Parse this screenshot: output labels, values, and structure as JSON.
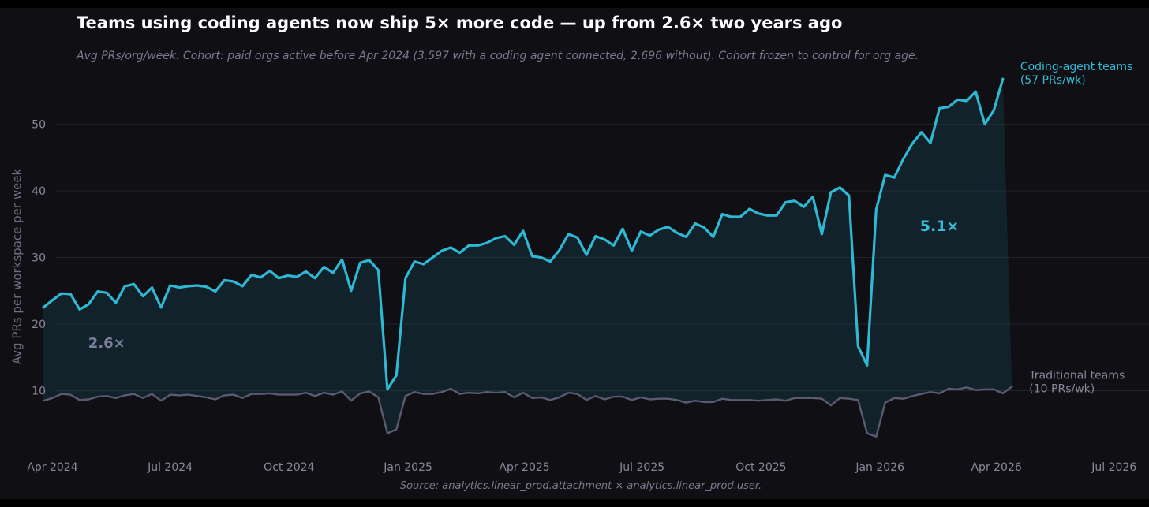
{
  "title": "Teams using coding agents now ship 5× more code — up from 2.6× two years ago",
  "subtitle": "Avg PRs/org/week. Cohort: paid orgs active before Apr 2024 (3,597 with a coding agent connected, 2,696 without). Cohort frozen to control for org age.",
  "source": "Source: analytics.linear_prod.attachment × analytics.linear_prod.user.",
  "colors": {
    "agent": "#2fb8d3",
    "traditional": "#5a5a72",
    "background": "#0f0f14",
    "grid": "#23232c"
  },
  "chart_data": {
    "type": "line",
    "ylabel": "Avg PRs per workspace per week",
    "ylim": [
      0,
      58
    ],
    "xlim": [
      "2024-03-25",
      "2026-07-28"
    ],
    "yticks": [
      10,
      20,
      30,
      40,
      50
    ],
    "ytick_labels": [
      "10",
      "20",
      "30",
      "40",
      "50"
    ],
    "xticks": [
      "2024-04-01",
      "2024-07-01",
      "2024-10-01",
      "2025-01-01",
      "2025-04-01",
      "2025-07-01",
      "2025-10-01",
      "2026-01-01",
      "2026-04-01",
      "2026-07-01"
    ],
    "xtick_labels": [
      "Apr 2024",
      "Jul 2024",
      "Oct 2024",
      "Jan 2025",
      "Apr 2025",
      "Jul 2025",
      "Oct 2025",
      "Jan 2026",
      "Apr 2026",
      "Jul 2026"
    ],
    "grid": true,
    "x_start": "2024-03-25",
    "x_step_days": 7,
    "series": [
      {
        "name": "Coding-agent teams",
        "end_label": [
          "Coding-agent teams",
          "(57 PRs/wk)"
        ],
        "values": [
          22.5,
          23.6,
          24.6,
          24.5,
          22.2,
          23.0,
          24.9,
          24.7,
          23.2,
          25.7,
          26.0,
          24.2,
          25.5,
          22.5,
          25.8,
          25.5,
          25.7,
          25.8,
          25.6,
          24.9,
          26.6,
          26.4,
          25.7,
          27.4,
          27.0,
          28.0,
          26.9,
          27.3,
          27.1,
          27.9,
          26.9,
          28.6,
          27.7,
          29.7,
          25.0,
          29.2,
          29.6,
          28.1,
          10.2,
          12.3,
          26.9,
          29.4,
          29.0,
          30.0,
          31.0,
          31.5,
          30.7,
          31.8,
          31.8,
          32.2,
          32.9,
          33.2,
          31.9,
          34.0,
          30.2,
          30.0,
          29.4,
          31.1,
          33.5,
          33.0,
          30.4,
          33.2,
          32.7,
          31.8,
          34.3,
          31.0,
          33.9,
          33.3,
          34.2,
          34.6,
          33.7,
          33.1,
          35.1,
          34.5,
          33.1,
          36.5,
          36.1,
          36.1,
          37.3,
          36.6,
          36.3,
          36.3,
          38.3,
          38.5,
          37.6,
          39.1,
          33.5,
          39.8,
          40.5,
          39.3,
          16.7,
          13.8,
          37.2,
          42.4,
          42.0,
          44.8,
          47.1,
          48.8,
          47.2,
          52.4,
          52.6,
          53.7,
          53.5,
          54.9,
          50.0,
          52.1,
          56.8
        ]
      },
      {
        "name": "Traditional teams",
        "end_label": [
          "Traditional teams",
          "(10 PRs/wk)"
        ],
        "values": [
          8.5,
          8.9,
          9.5,
          9.4,
          8.6,
          8.7,
          9.1,
          9.2,
          8.9,
          9.3,
          9.5,
          8.9,
          9.5,
          8.5,
          9.4,
          9.3,
          9.4,
          9.2,
          9.0,
          8.7,
          9.3,
          9.4,
          8.9,
          9.5,
          9.5,
          9.6,
          9.4,
          9.4,
          9.4,
          9.7,
          9.2,
          9.7,
          9.4,
          9.9,
          8.5,
          9.6,
          9.9,
          9.0,
          3.6,
          4.2,
          9.2,
          9.8,
          9.5,
          9.5,
          9.8,
          10.3,
          9.5,
          9.7,
          9.6,
          9.8,
          9.7,
          9.8,
          9.0,
          9.7,
          8.9,
          9.0,
          8.6,
          9.0,
          9.7,
          9.5,
          8.6,
          9.2,
          8.7,
          9.1,
          9.1,
          8.6,
          9.0,
          8.7,
          8.8,
          8.8,
          8.6,
          8.2,
          8.5,
          8.3,
          8.3,
          8.8,
          8.6,
          8.6,
          8.6,
          8.5,
          8.6,
          8.7,
          8.5,
          8.9,
          8.9,
          8.9,
          8.8,
          7.8,
          8.9,
          8.8,
          8.6,
          3.6,
          3.1,
          8.2,
          8.9,
          8.8,
          9.2,
          9.5,
          9.8,
          9.6,
          10.3,
          10.2,
          10.5,
          10.1,
          10.2,
          10.2,
          9.6,
          10.6
        ]
      }
    ],
    "annotations": [
      {
        "text": "2.6×",
        "x": "2024-05-13",
        "y": 17.3
      },
      {
        "text": "5.1×",
        "x": "2026-02-16",
        "y": 34.8
      }
    ]
  }
}
